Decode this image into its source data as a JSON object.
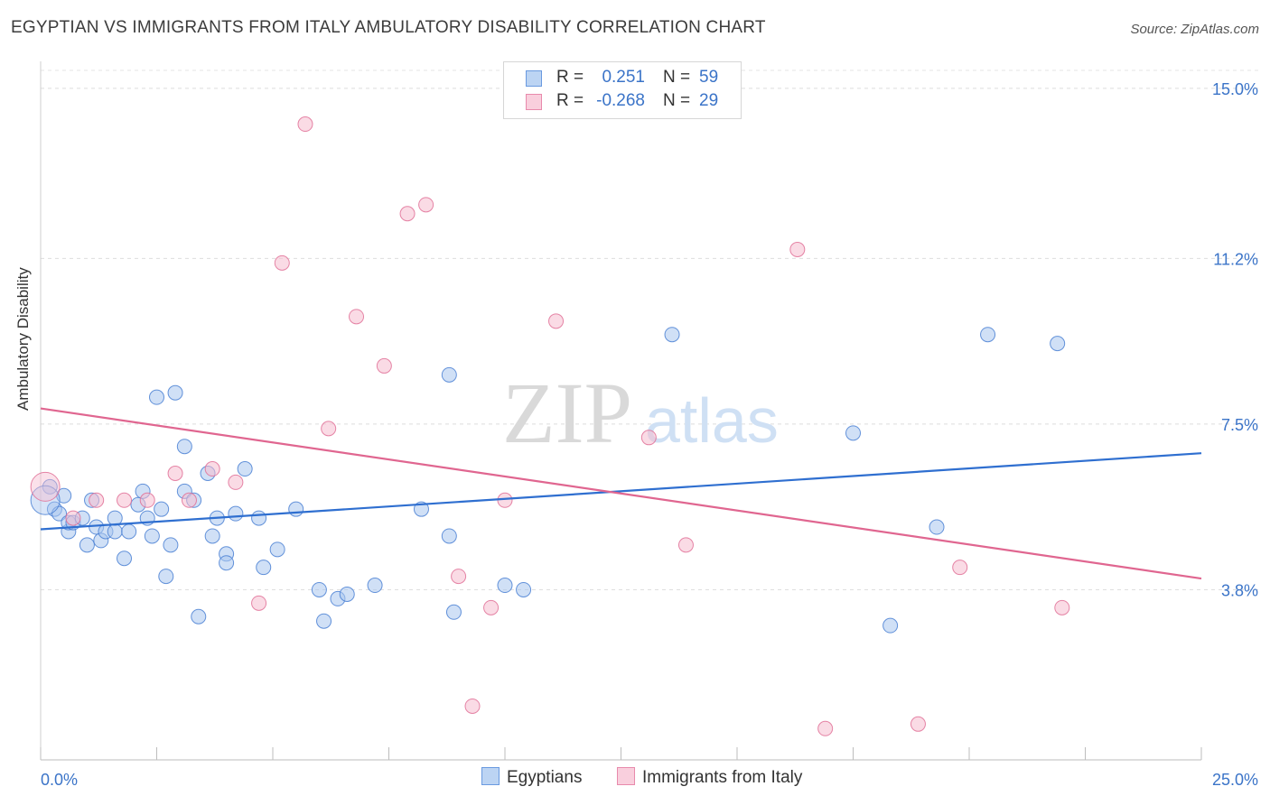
{
  "title": "EGYPTIAN VS IMMIGRANTS FROM ITALY AMBULATORY DISABILITY CORRELATION CHART",
  "source": "Source: ZipAtlas.com",
  "watermark": {
    "zip": "ZIP",
    "atlas": "atlas"
  },
  "legend": {
    "r_label": "R =",
    "n_label": "N =",
    "rows": [
      {
        "r": "0.251",
        "n": "59"
      },
      {
        "r": "-0.268",
        "n": "29"
      }
    ]
  },
  "chart_data": {
    "type": "scatter",
    "title": "EGYPTIAN VS IMMIGRANTS FROM ITALY AMBULATORY DISABILITY CORRELATION CHART",
    "xlabel": "",
    "ylabel": "Ambulatory Disability",
    "xlim": [
      0,
      25
    ],
    "ylim": [
      0,
      15.4
    ],
    "x_tick_labels": [
      "0.0%",
      "25.0%"
    ],
    "y_ticks": [
      3.8,
      7.5,
      11.2,
      15.0
    ],
    "y_tick_labels": [
      "3.8%",
      "7.5%",
      "11.2%",
      "15.0%"
    ],
    "grid": true,
    "legend_position": "top-center",
    "series": [
      {
        "name": "Egyptians",
        "color": "#4a80d4",
        "fill": "#a9c6ef",
        "r": 0.251,
        "n": 59,
        "trend": {
          "x": [
            0,
            25
          ],
          "y": [
            5.15,
            6.85
          ]
        },
        "points": [
          [
            0.2,
            6.1
          ],
          [
            0.3,
            5.6
          ],
          [
            0.4,
            5.5
          ],
          [
            0.5,
            5.9
          ],
          [
            0.6,
            5.1
          ],
          [
            0.6,
            5.3
          ],
          [
            0.7,
            5.3
          ],
          [
            0.9,
            5.4
          ],
          [
            1.0,
            4.8
          ],
          [
            1.1,
            5.8
          ],
          [
            1.2,
            5.2
          ],
          [
            1.3,
            4.9
          ],
          [
            1.4,
            5.1
          ],
          [
            1.6,
            5.1
          ],
          [
            1.6,
            5.4
          ],
          [
            1.8,
            4.5
          ],
          [
            1.9,
            5.1
          ],
          [
            2.1,
            5.7
          ],
          [
            2.2,
            6.0
          ],
          [
            2.3,
            5.4
          ],
          [
            2.4,
            5.0
          ],
          [
            2.5,
            8.1
          ],
          [
            2.6,
            5.6
          ],
          [
            2.7,
            4.1
          ],
          [
            2.8,
            4.8
          ],
          [
            2.9,
            8.2
          ],
          [
            3.1,
            7.0
          ],
          [
            3.1,
            6.0
          ],
          [
            3.3,
            5.8
          ],
          [
            3.4,
            3.2
          ],
          [
            3.6,
            6.4
          ],
          [
            3.7,
            5.0
          ],
          [
            3.8,
            5.4
          ],
          [
            4.0,
            4.6
          ],
          [
            4.0,
            4.4
          ],
          [
            4.2,
            5.5
          ],
          [
            4.4,
            6.5
          ],
          [
            4.7,
            5.4
          ],
          [
            4.8,
            4.3
          ],
          [
            5.1,
            4.7
          ],
          [
            5.5,
            5.6
          ],
          [
            6.0,
            3.8
          ],
          [
            6.1,
            3.1
          ],
          [
            6.4,
            3.6
          ],
          [
            6.6,
            3.7
          ],
          [
            7.2,
            3.9
          ],
          [
            8.2,
            5.6
          ],
          [
            8.8,
            8.6
          ],
          [
            8.8,
            5.0
          ],
          [
            8.9,
            3.3
          ],
          [
            10.0,
            3.9
          ],
          [
            10.4,
            3.8
          ],
          [
            13.6,
            9.5
          ],
          [
            17.5,
            7.3
          ],
          [
            18.3,
            3.0
          ],
          [
            19.3,
            5.2
          ],
          [
            20.4,
            9.5
          ],
          [
            21.9,
            9.3
          ],
          [
            0.1,
            5.8
          ]
        ]
      },
      {
        "name": "Immigrants from Italy",
        "color": "#e07096",
        "fill": "#f6bdd0",
        "r": -0.268,
        "n": 29,
        "trend": {
          "x": [
            0,
            25
          ],
          "y": [
            7.85,
            4.05
          ]
        },
        "points": [
          [
            0.1,
            6.1
          ],
          [
            0.7,
            5.4
          ],
          [
            1.2,
            5.8
          ],
          [
            1.8,
            5.8
          ],
          [
            2.3,
            5.8
          ],
          [
            2.9,
            6.4
          ],
          [
            3.2,
            5.8
          ],
          [
            3.7,
            6.5
          ],
          [
            4.2,
            6.2
          ],
          [
            4.7,
            3.5
          ],
          [
            5.2,
            11.1
          ],
          [
            5.7,
            14.2
          ],
          [
            6.2,
            7.4
          ],
          [
            6.8,
            9.9
          ],
          [
            7.4,
            8.8
          ],
          [
            7.9,
            12.2
          ],
          [
            8.3,
            12.4
          ],
          [
            9.0,
            4.1
          ],
          [
            9.3,
            1.2
          ],
          [
            9.7,
            3.4
          ],
          [
            10.0,
            5.8
          ],
          [
            11.1,
            9.8
          ],
          [
            13.1,
            7.2
          ],
          [
            13.9,
            4.8
          ],
          [
            16.3,
            11.4
          ],
          [
            16.9,
            0.7
          ],
          [
            18.9,
            0.8
          ],
          [
            19.8,
            4.3
          ],
          [
            22.0,
            3.4
          ]
        ]
      }
    ]
  }
}
